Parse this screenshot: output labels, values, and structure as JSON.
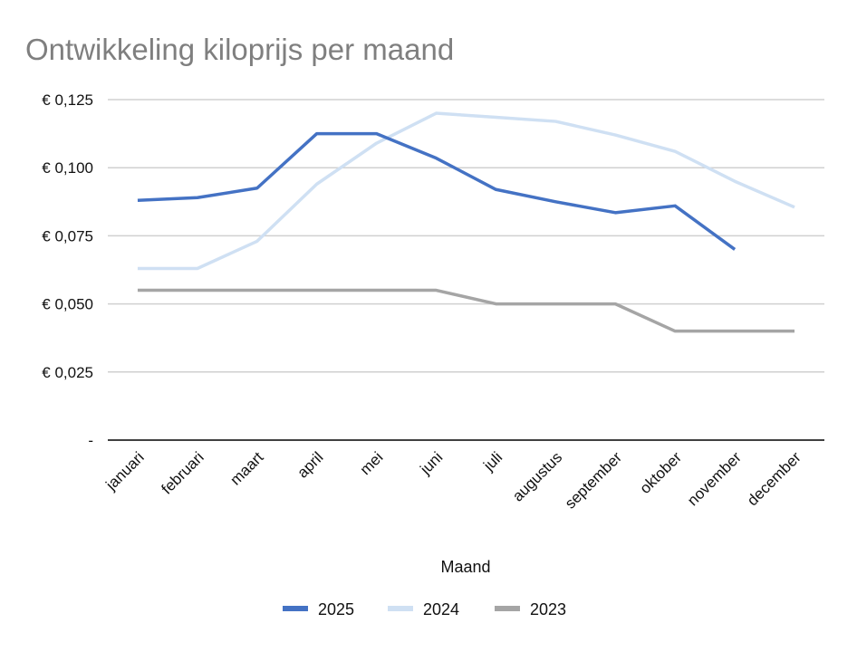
{
  "chart_data": {
    "type": "line",
    "title": "Ontwikkeling kiloprijs per maand",
    "xlabel": "Maand",
    "ylabel": "",
    "ylim": [
      0,
      0.125
    ],
    "yticks": [
      0,
      0.025,
      0.05,
      0.075,
      0.1,
      0.125
    ],
    "ytick_labels": [
      "-",
      "€ 0,025",
      "€ 0,050",
      "€ 0,075",
      "€ 0,100",
      "€ 0,125"
    ],
    "categories": [
      "januari",
      "februari",
      "maart",
      "april",
      "mei",
      "juni",
      "juli",
      "augustus",
      "september",
      "oktober",
      "november",
      "december"
    ],
    "grid": true,
    "legend_position": "bottom",
    "series": [
      {
        "name": "2025",
        "color": "#4472c4",
        "values": [
          0.088,
          0.089,
          0.0925,
          0.1125,
          0.1125,
          0.1035,
          0.092,
          0.0875,
          0.0835,
          0.086,
          0.07,
          null
        ]
      },
      {
        "name": "2024",
        "color": "#cfe0f3",
        "values": [
          0.063,
          0.063,
          0.073,
          0.094,
          0.109,
          0.12,
          0.1185,
          0.117,
          0.112,
          0.106,
          0.095,
          0.0855
        ]
      },
      {
        "name": "2023",
        "color": "#a5a5a5",
        "values": [
          0.055,
          0.055,
          0.055,
          0.055,
          0.055,
          0.055,
          0.05,
          0.05,
          0.05,
          0.04,
          0.04,
          0.04
        ]
      }
    ]
  }
}
